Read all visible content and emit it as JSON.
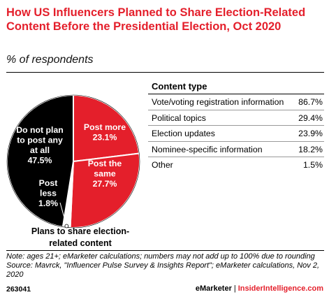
{
  "title": "How US Influencers Planned to Share Election-Related Content Before the Presidential Election, Oct 2020",
  "subtitle": "% of respondents",
  "chart_data": [
    {
      "type": "pie",
      "slices": [
        {
          "label_lines": [
            "Post more",
            "23.1%"
          ],
          "value": 23.1,
          "color": "#e41f2b"
        },
        {
          "label_lines": [
            "Post the",
            "same",
            "27.7%"
          ],
          "value": 27.7,
          "color": "#e41f2b"
        },
        {
          "label_lines": [
            "Post",
            "less",
            "1.8%"
          ],
          "value": 1.8,
          "color": "#ffffff"
        },
        {
          "label_lines": [
            "Do not plan",
            "to post any",
            "at all",
            "47.5%"
          ],
          "value": 47.5,
          "color": "#000000"
        }
      ],
      "caption": "Plans to share election-related content"
    },
    {
      "type": "table",
      "header": "Content type",
      "rows": [
        {
          "label": "Vote/voting registration information",
          "value": "86.7%"
        },
        {
          "label": "Political topics",
          "value": "29.4%"
        },
        {
          "label": "Election updates",
          "value": "23.9%"
        },
        {
          "label": "Nominee-specific information",
          "value": "18.2%"
        },
        {
          "label": "Other",
          "value": "1.5%"
        }
      ]
    }
  ],
  "notes": [
    "Note: ages 21+; eMarketer calculations; numbers may not add up to 100% due to rounding",
    "Source: Mavrck, \"Influencer Pulse Survey & Insights Report\"; eMarketer calculations, Nov 2, 2020"
  ],
  "footer": {
    "chart_id": "263041",
    "brand": "eMarketer",
    "separator": "|",
    "brand2": "InsiderIntelligence.com"
  }
}
